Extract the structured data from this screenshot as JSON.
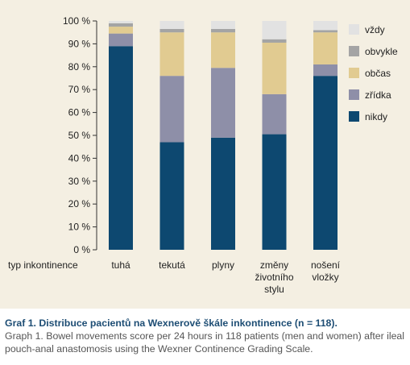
{
  "chart_data": {
    "type": "bar",
    "stacked": true,
    "x_axis_label": "typ inkontinence",
    "categories": [
      [
        "tuhá"
      ],
      [
        "tekutá"
      ],
      [
        "plyny"
      ],
      [
        "změny",
        "životního",
        "stylu"
      ],
      [
        "nošení",
        "vložky"
      ]
    ],
    "y_tick_labels": [
      "0 %",
      "10 %",
      "20 %",
      "30 %",
      "40 %",
      "50 %",
      "60 %",
      "70 %",
      "80 %",
      "90 %",
      "100 %"
    ],
    "ylim": [
      0,
      100
    ],
    "legend_position": "right",
    "series": [
      {
        "name": "nikdy",
        "color": "#0d4870",
        "values": [
          89,
          47,
          49,
          50.5,
          76
        ]
      },
      {
        "name": "zřídka",
        "color": "#8e8fa8",
        "values": [
          5.5,
          29,
          30.5,
          17.5,
          5
        ]
      },
      {
        "name": "občas",
        "color": "#e1cb91",
        "values": [
          3,
          19,
          15.5,
          22.5,
          14
        ]
      },
      {
        "name": "obvykle",
        "color": "#a4a4a4",
        "values": [
          1.5,
          1.5,
          1.5,
          1.5,
          1
        ]
      },
      {
        "name": "vždy",
        "color": "#e2e2e2",
        "values": [
          1,
          3.5,
          3.5,
          8,
          4
        ]
      }
    ]
  },
  "caption": {
    "title": "Graf 1. Distribuce pacientů na Wexnerově škále inkontinence (n = 118).",
    "text": "Graph 1. Bowel movements score per 24 hours in 118 patients (men and women) after ileal pouch-anal anastomosis using the Wexner Continence Grading Scale."
  }
}
